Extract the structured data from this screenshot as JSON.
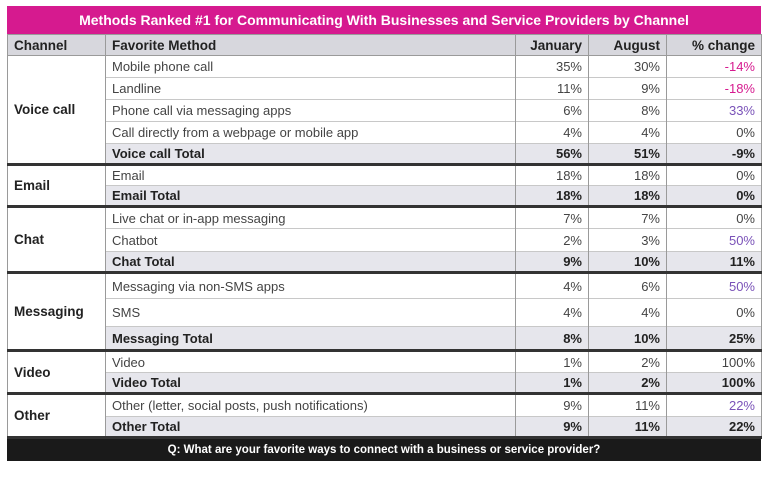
{
  "chart_data": {
    "type": "table",
    "title": "Methods Ranked #1 for Communicating With Businesses and Service Providers by Channel",
    "columns": [
      "Channel",
      "Favorite Method",
      "January",
      "August",
      "% change"
    ],
    "groups": [
      {
        "channel": "Voice call",
        "rows": [
          {
            "method": "Mobile phone call",
            "jan": "35%",
            "aug": "30%",
            "change": "-14%",
            "tone": "pink"
          },
          {
            "method": "Landline",
            "jan": "11%",
            "aug": "9%",
            "change": "-18%",
            "tone": "pink"
          },
          {
            "method": "Phone call via messaging apps",
            "jan": "6%",
            "aug": "8%",
            "change": "33%",
            "tone": "purple"
          },
          {
            "method": "Call directly from a webpage or mobile app",
            "jan": "4%",
            "aug": "4%",
            "change": "0%",
            "tone": ""
          },
          {
            "method": "Voice call Total",
            "jan": "56%",
            "aug": "51%",
            "change": "-9%",
            "tone": "pink",
            "total": true
          }
        ]
      },
      {
        "channel": "Email",
        "rows": [
          {
            "method": "Email",
            "jan": "18%",
            "aug": "18%",
            "change": "0%",
            "tone": ""
          },
          {
            "method": "Email Total",
            "jan": "18%",
            "aug": "18%",
            "change": "0%",
            "tone": "",
            "total": true
          }
        ]
      },
      {
        "channel": "Chat",
        "rows": [
          {
            "method": "Live chat or in-app messaging",
            "jan": "7%",
            "aug": "7%",
            "change": "0%",
            "tone": ""
          },
          {
            "method": "Chatbot",
            "jan": "2%",
            "aug": "3%",
            "change": "50%",
            "tone": "purple"
          },
          {
            "method": "Chat Total",
            "jan": "9%",
            "aug": "10%",
            "change": "11%",
            "tone": "purple",
            "total": true
          }
        ]
      },
      {
        "channel": "Messaging",
        "rows": [
          {
            "method": "Messaging via non-SMS apps",
            "jan": "4%",
            "aug": "6%",
            "change": "50%",
            "tone": "purple"
          },
          {
            "method": "SMS",
            "jan": "4%",
            "aug": "4%",
            "change": "0%",
            "tone": ""
          },
          {
            "method": "Messaging Total",
            "jan": "8%",
            "aug": "10%",
            "change": "25%",
            "tone": "purple",
            "total": true
          }
        ]
      },
      {
        "channel": "Video",
        "rows": [
          {
            "method": "Video",
            "jan": "1%",
            "aug": "2%",
            "change": "100%",
            "tone": ""
          },
          {
            "method": "Video Total",
            "jan": "1%",
            "aug": "2%",
            "change": "100%",
            "tone": "purple",
            "total": true
          }
        ]
      },
      {
        "channel": "Other",
        "rows": [
          {
            "method": "Other (letter, social posts, push notifications)",
            "jan": "9%",
            "aug": "11%",
            "change": "22%",
            "tone": "purple"
          },
          {
            "method": "Other Total",
            "jan": "9%",
            "aug": "11%",
            "change": "22%",
            "tone": "purple",
            "total": true
          }
        ]
      }
    ],
    "footnote": "Q: What are your favorite ways to connect with a business or service provider?"
  },
  "colors": {
    "accent": "#d61a8f",
    "positive": "#7a52b8",
    "header_bg": "#d7d7dd",
    "total_bg": "#e6e6ec",
    "footer_bg": "#1a1a1a"
  }
}
